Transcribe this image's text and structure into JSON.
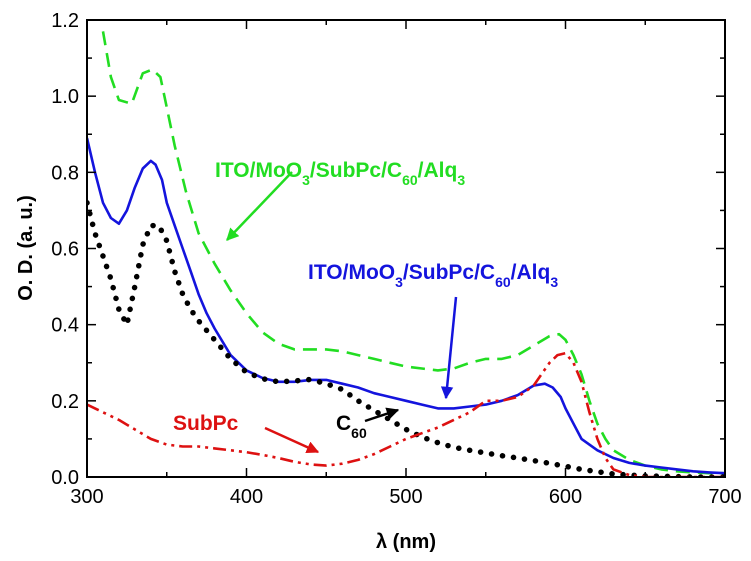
{
  "chart_data": {
    "type": "line",
    "xlabel": "λ (nm)",
    "ylabel": "O. D. (a. u.)",
    "xlim": [
      300,
      700
    ],
    "ylim": [
      0.0,
      1.2
    ],
    "x_ticks": [
      "300",
      "400",
      "500",
      "600",
      "700"
    ],
    "y_ticks": [
      "0.0",
      "0.2",
      "0.4",
      "0.6",
      "0.8",
      "1.0",
      "1.2"
    ],
    "grid": false,
    "series": [
      {
        "color": "#22dd22",
        "style": "dashed",
        "x": [
          310,
          315,
          320,
          328,
          335,
          341,
          346,
          350,
          355,
          362,
          370,
          380,
          390,
          400,
          410,
          420,
          430,
          440,
          450,
          460,
          470,
          480,
          490,
          500,
          510,
          520,
          530,
          540,
          550,
          560,
          570,
          580,
          590,
          596,
          600,
          605,
          610,
          615,
          620,
          625,
          630,
          640,
          650,
          660,
          670,
          680,
          690,
          700
        ],
        "y": [
          1.17,
          1.05,
          0.99,
          0.98,
          1.06,
          1.07,
          1.05,
          0.97,
          0.87,
          0.75,
          0.64,
          0.56,
          0.49,
          0.43,
          0.38,
          0.35,
          0.335,
          0.335,
          0.335,
          0.33,
          0.32,
          0.31,
          0.3,
          0.29,
          0.285,
          0.28,
          0.285,
          0.3,
          0.31,
          0.31,
          0.32,
          0.345,
          0.37,
          0.375,
          0.36,
          0.32,
          0.27,
          0.2,
          0.14,
          0.1,
          0.07,
          0.045,
          0.03,
          0.02,
          0.015,
          0.012,
          0.01,
          0.01
        ]
      },
      {
        "color": "#1414dd",
        "style": "solid",
        "x": [
          300,
          305,
          310,
          315,
          320,
          325,
          330,
          335,
          340,
          343,
          347,
          350,
          355,
          360,
          365,
          370,
          375,
          380,
          390,
          400,
          410,
          420,
          430,
          440,
          450,
          460,
          470,
          480,
          490,
          500,
          510,
          520,
          530,
          540,
          550,
          560,
          570,
          580,
          587,
          592,
          597,
          600,
          605,
          610,
          620,
          630,
          640,
          650,
          660,
          670,
          680,
          690,
          700
        ],
        "y": [
          0.89,
          0.8,
          0.72,
          0.68,
          0.665,
          0.7,
          0.76,
          0.81,
          0.83,
          0.82,
          0.78,
          0.72,
          0.66,
          0.6,
          0.54,
          0.48,
          0.43,
          0.39,
          0.32,
          0.28,
          0.26,
          0.25,
          0.25,
          0.255,
          0.255,
          0.245,
          0.235,
          0.22,
          0.21,
          0.2,
          0.19,
          0.18,
          0.18,
          0.185,
          0.19,
          0.2,
          0.215,
          0.24,
          0.245,
          0.235,
          0.21,
          0.18,
          0.14,
          0.1,
          0.07,
          0.05,
          0.037,
          0.03,
          0.025,
          0.02,
          0.015,
          0.012,
          0.01
        ]
      },
      {
        "color": "#000000",
        "style": "dotted",
        "x": [
          300,
          305,
          310,
          315,
          320,
          325,
          330,
          335,
          340,
          345,
          350,
          355,
          360,
          365,
          370,
          380,
          390,
          400,
          410,
          420,
          430,
          440,
          450,
          460,
          470,
          480,
          490,
          500,
          510,
          520,
          530,
          540,
          550,
          560,
          570,
          580,
          590,
          600,
          610,
          620,
          630,
          640,
          650,
          660,
          670,
          680,
          700
        ],
        "y": [
          0.72,
          0.64,
          0.58,
          0.52,
          0.44,
          0.4,
          0.5,
          0.61,
          0.66,
          0.66,
          0.62,
          0.54,
          0.48,
          0.44,
          0.41,
          0.36,
          0.31,
          0.275,
          0.258,
          0.25,
          0.252,
          0.256,
          0.245,
          0.23,
          0.2,
          0.175,
          0.15,
          0.125,
          0.105,
          0.09,
          0.078,
          0.07,
          0.063,
          0.056,
          0.05,
          0.043,
          0.036,
          0.028,
          0.02,
          0.014,
          0.008,
          0.005,
          0.003,
          0.002,
          0.001,
          0.0,
          0.0
        ]
      },
      {
        "color": "#dd1111",
        "style": "dash-dot-dot",
        "x": [
          300,
          305,
          310,
          315,
          320,
          330,
          340,
          350,
          360,
          370,
          380,
          390,
          400,
          410,
          420,
          430,
          440,
          450,
          460,
          470,
          480,
          490,
          500,
          510,
          520,
          530,
          540,
          550,
          560,
          570,
          580,
          590,
          595,
          600,
          605,
          610,
          615,
          620,
          625,
          630,
          640,
          650,
          660,
          670,
          680,
          700
        ],
        "y": [
          0.19,
          0.18,
          0.17,
          0.16,
          0.15,
          0.125,
          0.1,
          0.085,
          0.08,
          0.08,
          0.075,
          0.07,
          0.065,
          0.058,
          0.05,
          0.04,
          0.033,
          0.03,
          0.035,
          0.045,
          0.06,
          0.08,
          0.1,
          0.115,
          0.13,
          0.15,
          0.17,
          0.2,
          0.2,
          0.21,
          0.24,
          0.3,
          0.32,
          0.325,
          0.3,
          0.25,
          0.17,
          0.1,
          0.05,
          0.02,
          0.005,
          0.0,
          0.0,
          0.0,
          0.0,
          0.0
        ]
      }
    ],
    "annotations": [
      {
        "text": "ITO/MoO",
        "sub1": "3",
        "mid": "/SubPc/C",
        "sub2": "60",
        "end": "/Alq",
        "sub3": "3",
        "color": "#22dd22"
      },
      {
        "text": "ITO/MoO",
        "sub1": "3",
        "mid": "/SubPc/C",
        "sub2": "60",
        "end": "/Alq",
        "sub3": "3",
        "color": "#1414dd"
      },
      {
        "text": "C",
        "sub": "60",
        "color": "#000000"
      },
      {
        "text": "SubPc",
        "color": "#dd1111"
      }
    ]
  }
}
